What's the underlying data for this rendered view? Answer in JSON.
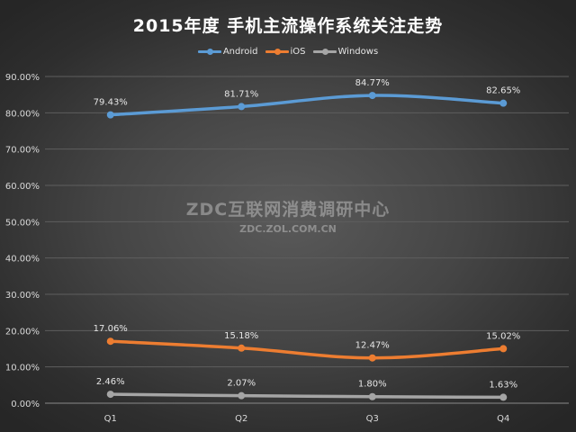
{
  "chart_data": {
    "type": "line",
    "title": "2015年度 手机主流操作系统关注走势",
    "categories": [
      "Q1",
      "Q2",
      "Q3",
      "Q4"
    ],
    "series": [
      {
        "name": "Android",
        "color": "#5b9bd5",
        "values": [
          79.43,
          81.71,
          84.77,
          82.65
        ],
        "labels": [
          "79.43%",
          "81.71%",
          "84.77%",
          "82.65%"
        ]
      },
      {
        "name": "iOS",
        "color": "#ed7d31",
        "values": [
          17.06,
          15.18,
          12.47,
          15.02
        ],
        "labels": [
          "17.06%",
          "15.18%",
          "12.47%",
          "15.02%"
        ]
      },
      {
        "name": "Windows",
        "color": "#a5a5a5",
        "values": [
          2.46,
          2.07,
          1.8,
          1.63
        ],
        "labels": [
          "2.46%",
          "2.07%",
          "1.80%",
          "1.63%"
        ]
      }
    ],
    "ylim": [
      0,
      90
    ],
    "yticks": [
      "0.00%",
      "10.00%",
      "20.00%",
      "30.00%",
      "40.00%",
      "50.00%",
      "60.00%",
      "70.00%",
      "80.00%",
      "90.00%"
    ],
    "xlabel": "",
    "ylabel": "",
    "grid": true,
    "legend_position": "top"
  },
  "watermark": {
    "main": "ZDC互联网消费调研中心",
    "sub": "ZDC.ZOL.COM.CN"
  }
}
